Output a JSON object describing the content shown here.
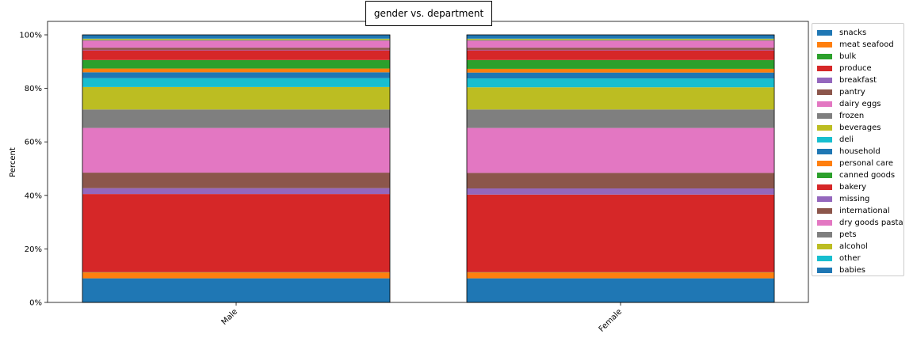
{
  "chart_data": {
    "type": "bar",
    "stacked": true,
    "title": "gender vs. department",
    "xlabel": "",
    "ylabel": "Percent",
    "ylim": [
      0,
      100
    ],
    "yticks": [
      "0%",
      "20%",
      "40%",
      "60%",
      "80%",
      "100%"
    ],
    "categories": [
      "Male",
      "Female"
    ],
    "legend_position": "right",
    "series": [
      {
        "name": "snacks",
        "color": "#1f77b4",
        "values": [
          9.0,
          9.0
        ]
      },
      {
        "name": "meat seafood",
        "color": "#ff7f0e",
        "values": [
          2.2,
          2.2
        ]
      },
      {
        "name": "bulk",
        "color": "#2ca02c",
        "values": [
          0.1,
          0.1
        ]
      },
      {
        "name": "produce",
        "color": "#d62728",
        "values": [
          29.2,
          29.0
        ]
      },
      {
        "name": "breakfast",
        "color": "#9467bd",
        "values": [
          2.2,
          2.3
        ]
      },
      {
        "name": "pantry",
        "color": "#8c564b",
        "values": [
          5.8,
          5.8
        ]
      },
      {
        "name": "dairy eggs",
        "color": "#e377c2",
        "values": [
          16.7,
          16.8
        ]
      },
      {
        "name": "frozen",
        "color": "#7f7f7f",
        "values": [
          6.9,
          6.9
        ]
      },
      {
        "name": "beverages",
        "color": "#bcbd22",
        "values": [
          8.4,
          8.3
        ]
      },
      {
        "name": "deli",
        "color": "#17becf",
        "values": [
          3.3,
          3.3
        ]
      },
      {
        "name": "household",
        "color": "#1f77b4",
        "values": [
          2.2,
          2.2
        ]
      },
      {
        "name": "personal care",
        "color": "#ff7f0e",
        "values": [
          1.4,
          1.4
        ]
      },
      {
        "name": "canned goods",
        "color": "#2ca02c",
        "values": [
          3.2,
          3.3
        ]
      },
      {
        "name": "bakery",
        "color": "#d62728",
        "values": [
          3.6,
          3.6
        ]
      },
      {
        "name": "missing",
        "color": "#9467bd",
        "values": [
          0.2,
          0.2
        ]
      },
      {
        "name": "international",
        "color": "#8c564b",
        "values": [
          0.8,
          0.8
        ]
      },
      {
        "name": "dry goods pasta",
        "color": "#e377c2",
        "values": [
          2.6,
          2.6
        ]
      },
      {
        "name": "pets",
        "color": "#7f7f7f",
        "values": [
          0.3,
          0.3
        ]
      },
      {
        "name": "alcohol",
        "color": "#bcbd22",
        "values": [
          0.4,
          0.4
        ]
      },
      {
        "name": "other",
        "color": "#17becf",
        "values": [
          0.1,
          0.1
        ]
      },
      {
        "name": "babies",
        "color": "#1f77b4",
        "values": [
          1.4,
          1.4
        ]
      }
    ]
  }
}
